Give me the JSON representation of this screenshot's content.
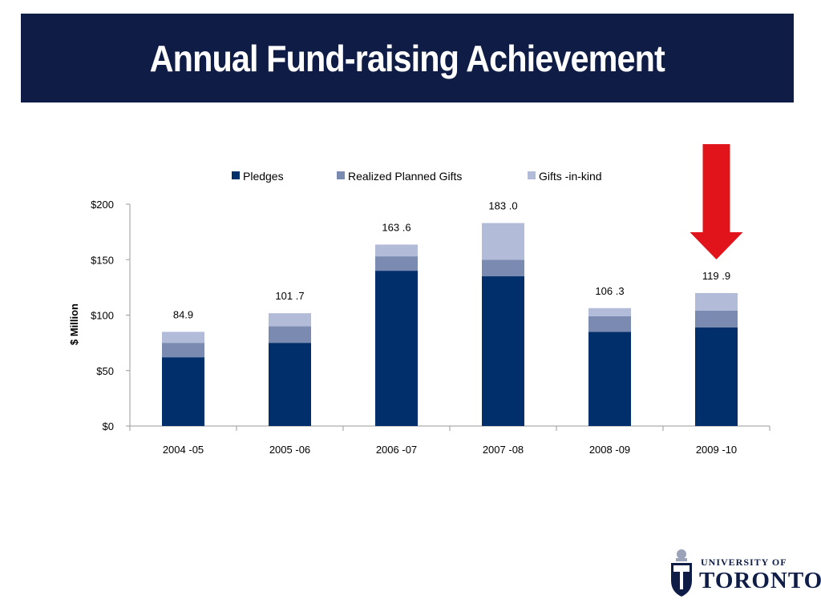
{
  "slide": {
    "title": "Annual Fund-raising Achievement"
  },
  "logo": {
    "line1": "UNIVERSITY OF",
    "line2": "TORONTO"
  },
  "colors": {
    "title_bg": "#0e1c46",
    "pledges": "#002f6b",
    "realized": "#7a8ab1",
    "gifts": "#b2bcd8",
    "arrow": "#e0141a"
  },
  "chart_data": {
    "type": "bar",
    "stacked": true,
    "categories": [
      "2004 -05",
      "2005 -06",
      "2006 -07",
      "2007 -08",
      "2008 -09",
      "2009 -10"
    ],
    "series": [
      {
        "name": "Pledges",
        "values": [
          62,
          75,
          140,
          135,
          85,
          89
        ]
      },
      {
        "name": "Realized Planned Gifts",
        "values": [
          13,
          15,
          13,
          15,
          14,
          15
        ]
      },
      {
        "name": "Gifts -in-kind",
        "values": [
          9.9,
          11.7,
          10.6,
          33.0,
          7.3,
          15.9
        ]
      }
    ],
    "totals": [
      "84.9",
      "101 .7",
      "163 .6",
      "183 .0",
      "106 .3",
      "119 .9"
    ],
    "ylabel": "$ Million",
    "ylim": [
      0,
      200
    ],
    "yticks": [
      0,
      50,
      100,
      150,
      200
    ],
    "ytick_labels": [
      "$0",
      "$50",
      "$100",
      "$150",
      "$200"
    ],
    "legend_position": "top",
    "grid": false,
    "highlight_category": "2009 -10"
  }
}
